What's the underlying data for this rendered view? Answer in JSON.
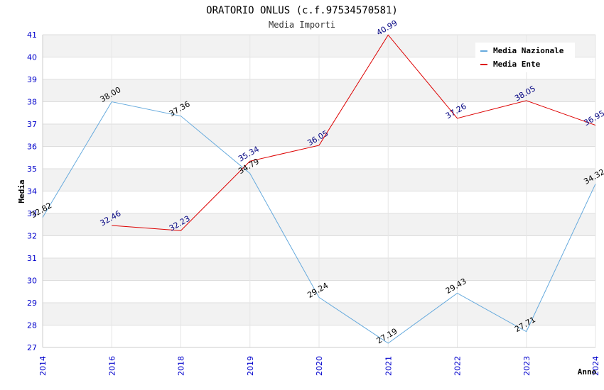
{
  "chart_data": {
    "type": "line",
    "title": "ORATORIO ONLUS (c.f.97534570581)",
    "subtitle": "Media Importi",
    "xlabel": "Anno",
    "ylabel": "Media",
    "ylim": [
      27,
      41
    ],
    "yticks": [
      27,
      28,
      29,
      30,
      31,
      32,
      33,
      34,
      35,
      36,
      37,
      38,
      39,
      40,
      41
    ],
    "categories": [
      "2014",
      "2016",
      "2018",
      "2019",
      "2020",
      "2021",
      "2022",
      "2023",
      "2024"
    ],
    "grid": true,
    "legend_position": "top-right",
    "series": [
      {
        "name": "Media Nazionale",
        "color": "#66aadd",
        "label_color": "#000000",
        "values": [
          32.82,
          38.0,
          37.36,
          34.79,
          29.24,
          27.19,
          29.43,
          27.71,
          34.32
        ],
        "labels": [
          "32.82",
          "38.00",
          "37.36",
          "34.79",
          "29.24",
          "27.19",
          "29.43",
          "27.71",
          "34.32"
        ]
      },
      {
        "name": "Media Ente",
        "color": "#dd0000",
        "label_color": "#000080",
        "values": [
          null,
          32.46,
          32.23,
          35.34,
          36.05,
          40.99,
          37.26,
          38.05,
          36.95
        ],
        "labels": [
          null,
          "32.46",
          "32.23",
          "35.34",
          "36.05",
          "40.99",
          "37.26",
          "38.05",
          "36.95"
        ]
      }
    ]
  }
}
